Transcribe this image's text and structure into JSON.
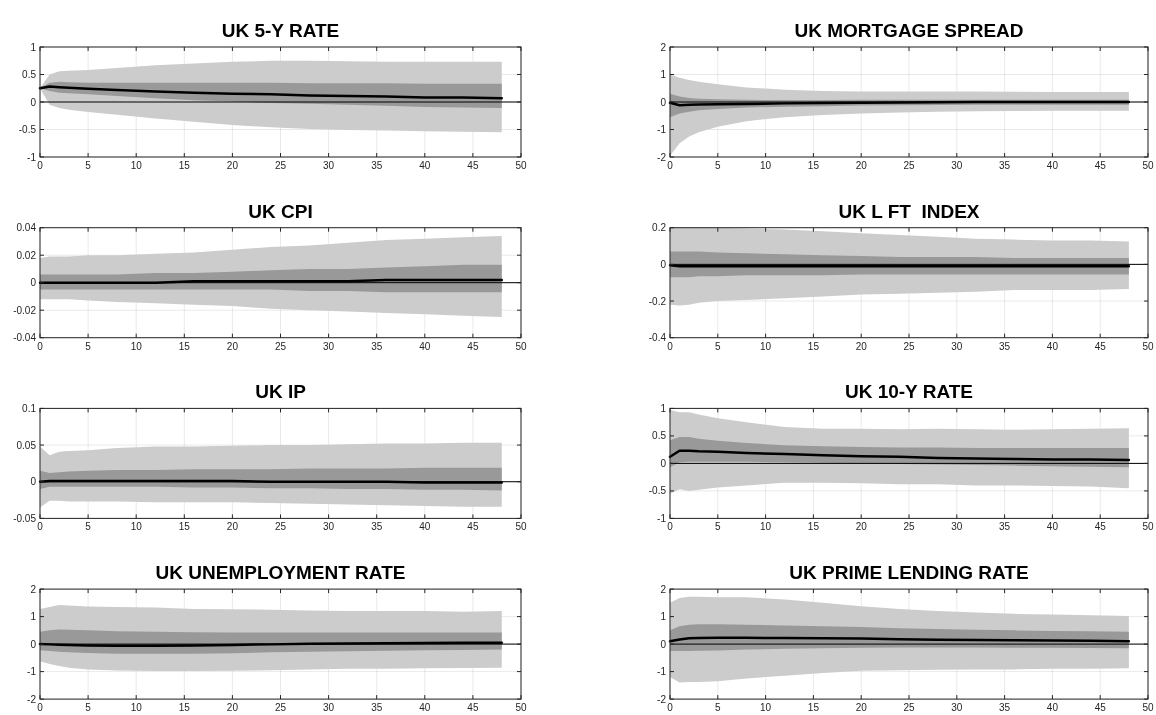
{
  "chart_data": [
    {
      "type": "line",
      "title": "UK 5-Y RATE",
      "x": [
        0,
        1,
        2,
        3,
        5,
        8,
        12,
        16,
        20,
        24,
        28,
        32,
        36,
        40,
        44,
        48
      ],
      "xlim": [
        0,
        50
      ],
      "xticks": [
        0,
        5,
        10,
        15,
        20,
        25,
        30,
        35,
        40,
        45,
        50
      ],
      "ylim": [
        -1,
        1
      ],
      "yticks": [
        -1,
        -0.5,
        0,
        0.5,
        1
      ],
      "grid": true,
      "ref_lines": [
        {
          "axis": "y",
          "value": 0,
          "color": "#000000"
        }
      ],
      "series": [
        {
          "color": "#cccccc",
          "values": [
            null,
            null,
            null,
            null,
            null,
            null,
            null,
            null,
            null,
            null,
            null,
            null,
            null,
            null,
            null,
            null
          ],
          "lower": [
            0.25,
            -0.05,
            -0.11,
            -0.14,
            -0.18,
            -0.23,
            -0.3,
            -0.36,
            -0.42,
            -0.46,
            -0.49,
            -0.51,
            -0.52,
            -0.53,
            -0.54,
            -0.55
          ],
          "upper": [
            0.25,
            0.5,
            0.56,
            0.57,
            0.58,
            0.62,
            0.67,
            0.7,
            0.73,
            0.75,
            0.75,
            0.74,
            0.73,
            0.73,
            0.73,
            0.73
          ]
        },
        {
          "color": "#999999",
          "values": [
            null,
            null,
            null,
            null,
            null,
            null,
            null,
            null,
            null,
            null,
            null,
            null,
            null,
            null,
            null,
            null
          ],
          "lower": [
            0.25,
            0.2,
            0.17,
            0.16,
            0.14,
            0.11,
            0.07,
            0.03,
            0.01,
            -0.02,
            -0.03,
            -0.05,
            -0.07,
            -0.09,
            -0.1,
            -0.11
          ],
          "upper": [
            0.25,
            0.35,
            0.37,
            0.36,
            0.35,
            0.35,
            0.35,
            0.35,
            0.35,
            0.35,
            0.34,
            0.34,
            0.34,
            0.33,
            0.33,
            0.33
          ]
        },
        {
          "color": "#000000",
          "values": [
            0.25,
            0.28,
            0.27,
            0.26,
            0.24,
            0.22,
            0.19,
            0.17,
            0.15,
            0.14,
            0.12,
            0.11,
            0.1,
            0.08,
            0.08,
            0.07
          ]
        }
      ]
    },
    {
      "type": "line",
      "title": "UK MORTGAGE SPREAD",
      "x": [
        0,
        1,
        2,
        3,
        5,
        8,
        12,
        16,
        20,
        24,
        28,
        32,
        36,
        40,
        44,
        48
      ],
      "xlim": [
        0,
        50
      ],
      "xticks": [
        0,
        5,
        10,
        15,
        20,
        25,
        30,
        35,
        40,
        45,
        50
      ],
      "ylim": [
        -2,
        2
      ],
      "yticks": [
        -2,
        -1,
        0,
        1,
        2
      ],
      "grid": true,
      "ref_lines": [
        {
          "axis": "y",
          "value": 0,
          "color": "#000000"
        }
      ],
      "series": [
        {
          "color": "#cccccc",
          "values": [
            null,
            null,
            null,
            null,
            null,
            null,
            null,
            null,
            null,
            null,
            null,
            null,
            null,
            null,
            null,
            null
          ],
          "lower": [
            -1.95,
            -1.5,
            -1.25,
            -1.1,
            -0.9,
            -0.7,
            -0.55,
            -0.47,
            -0.42,
            -0.38,
            -0.35,
            -0.34,
            -0.33,
            -0.32,
            -0.32,
            -0.32
          ],
          "upper": [
            1.0,
            0.88,
            0.8,
            0.74,
            0.65,
            0.53,
            0.45,
            0.4,
            0.38,
            0.38,
            0.38,
            0.38,
            0.37,
            0.36,
            0.36,
            0.36
          ]
        },
        {
          "color": "#999999",
          "values": [
            null,
            null,
            null,
            null,
            null,
            null,
            null,
            null,
            null,
            null,
            null,
            null,
            null,
            null,
            null,
            null
          ],
          "lower": [
            -0.55,
            -0.42,
            -0.35,
            -0.3,
            -0.25,
            -0.2,
            -0.17,
            -0.15,
            -0.13,
            -0.12,
            -0.11,
            -0.1,
            -0.1,
            -0.1,
            -0.1,
            -0.1
          ],
          "upper": [
            0.3,
            0.2,
            0.15,
            0.12,
            0.1,
            0.08,
            0.07,
            0.07,
            0.08,
            0.08,
            0.08,
            0.08,
            0.08,
            0.08,
            0.08,
            0.08
          ]
        },
        {
          "color": "#000000",
          "values": [
            -0.03,
            -0.12,
            -0.1,
            -0.09,
            -0.08,
            -0.07,
            -0.05,
            -0.04,
            -0.03,
            -0.02,
            -0.01,
            0,
            0,
            0,
            0,
            0
          ]
        }
      ]
    },
    {
      "type": "line",
      "title": "UK CPI",
      "x": [
        0,
        1,
        2,
        3,
        5,
        8,
        12,
        16,
        20,
        24,
        28,
        32,
        36,
        40,
        44,
        48
      ],
      "xlim": [
        0,
        50
      ],
      "xticks": [
        0,
        5,
        10,
        15,
        20,
        25,
        30,
        35,
        40,
        45,
        50
      ],
      "ylim": [
        -0.04,
        0.04
      ],
      "yticks": [
        -0.04,
        -0.02,
        0,
        0.02,
        0.04
      ],
      "grid": true,
      "ref_lines": [
        {
          "axis": "y",
          "value": 0,
          "color": "#000000"
        }
      ],
      "series": [
        {
          "color": "#cccccc",
          "values": [
            null,
            null,
            null,
            null,
            null,
            null,
            null,
            null,
            null,
            null,
            null,
            null,
            null,
            null,
            null,
            null
          ],
          "lower": [
            -0.012,
            -0.012,
            -0.012,
            -0.012,
            -0.013,
            -0.014,
            -0.015,
            -0.016,
            -0.017,
            -0.019,
            -0.02,
            -0.021,
            -0.022,
            -0.023,
            -0.024,
            -0.025
          ],
          "upper": [
            0.018,
            0.019,
            0.019,
            0.019,
            0.02,
            0.02,
            0.021,
            0.022,
            0.024,
            0.026,
            0.027,
            0.029,
            0.031,
            0.032,
            0.033,
            0.034
          ]
        },
        {
          "color": "#999999",
          "values": [
            null,
            null,
            null,
            null,
            null,
            null,
            null,
            null,
            null,
            null,
            null,
            null,
            null,
            null,
            null,
            null
          ],
          "lower": [
            -0.005,
            -0.005,
            -0.005,
            -0.005,
            -0.005,
            -0.005,
            -0.005,
            -0.005,
            -0.005,
            -0.005,
            -0.006,
            -0.006,
            -0.007,
            -0.007,
            -0.007,
            -0.007
          ],
          "upper": [
            0.006,
            0.006,
            0.006,
            0.006,
            0.006,
            0.006,
            0.007,
            0.007,
            0.008,
            0.009,
            0.01,
            0.01,
            0.011,
            0.012,
            0.013,
            0.013
          ]
        },
        {
          "color": "#000000",
          "values": [
            0,
            0,
            0,
            0,
            0,
            0,
            0,
            0.001,
            0.001,
            0.001,
            0.001,
            0.001,
            0.002,
            0.002,
            0.002,
            0.002
          ]
        }
      ]
    },
    {
      "type": "line",
      "title": "UK L FT  INDEX",
      "x": [
        0,
        1,
        2,
        3,
        5,
        8,
        12,
        16,
        20,
        24,
        28,
        32,
        36,
        40,
        44,
        48
      ],
      "xlim": [
        0,
        50
      ],
      "xticks": [
        0,
        5,
        10,
        15,
        20,
        25,
        30,
        35,
        40,
        45,
        50
      ],
      "ylim": [
        -0.4,
        0.2
      ],
      "yticks": [
        -0.4,
        -0.2,
        0,
        0.2
      ],
      "grid": true,
      "ref_lines": [
        {
          "axis": "y",
          "value": 0,
          "color": "#000000"
        }
      ],
      "series": [
        {
          "color": "#cccccc",
          "values": [
            null,
            null,
            null,
            null,
            null,
            null,
            null,
            null,
            null,
            null,
            null,
            null,
            null,
            null,
            null,
            null
          ],
          "lower": [
            -0.22,
            -0.225,
            -0.22,
            -0.21,
            -0.2,
            -0.195,
            -0.185,
            -0.175,
            -0.165,
            -0.16,
            -0.155,
            -0.15,
            -0.14,
            -0.14,
            -0.14,
            -0.135
          ],
          "upper": [
            0.2,
            0.2,
            0.2,
            0.2,
            0.2,
            0.195,
            0.19,
            0.18,
            0.17,
            0.16,
            0.15,
            0.14,
            0.135,
            0.13,
            0.13,
            0.125
          ]
        },
        {
          "color": "#999999",
          "values": [
            null,
            null,
            null,
            null,
            null,
            null,
            null,
            null,
            null,
            null,
            null,
            null,
            null,
            null,
            null,
            null
          ],
          "lower": [
            -0.07,
            -0.07,
            -0.07,
            -0.065,
            -0.065,
            -0.06,
            -0.06,
            -0.06,
            -0.055,
            -0.055,
            -0.055,
            -0.055,
            -0.055,
            -0.055,
            -0.055,
            -0.055
          ],
          "upper": [
            0.07,
            0.07,
            0.07,
            0.07,
            0.065,
            0.06,
            0.055,
            0.05,
            0.045,
            0.04,
            0.04,
            0.04,
            0.035,
            0.035,
            0.035,
            0.035
          ]
        },
        {
          "color": "#000000",
          "values": [
            -0.005,
            -0.01,
            -0.01,
            -0.01,
            -0.01,
            -0.01,
            -0.01,
            -0.01,
            -0.01,
            -0.01,
            -0.01,
            -0.01,
            -0.01,
            -0.01,
            -0.01,
            -0.01
          ]
        }
      ]
    },
    {
      "type": "line",
      "title": "UK IP",
      "x": [
        0,
        1,
        2,
        3,
        5,
        8,
        12,
        16,
        20,
        24,
        28,
        32,
        36,
        40,
        44,
        48
      ],
      "xlim": [
        0,
        50
      ],
      "xticks": [
        0,
        5,
        10,
        15,
        20,
        25,
        30,
        35,
        40,
        45,
        50
      ],
      "ylim": [
        -0.05,
        0.1
      ],
      "yticks": [
        -0.05,
        0,
        0.05,
        0.1
      ],
      "grid": true,
      "ref_lines": [
        {
          "axis": "y",
          "value": 0,
          "color": "#000000"
        }
      ],
      "series": [
        {
          "color": "#cccccc",
          "values": [
            null,
            null,
            null,
            null,
            null,
            null,
            null,
            null,
            null,
            null,
            null,
            null,
            null,
            null,
            null,
            null
          ],
          "lower": [
            -0.035,
            -0.026,
            -0.026,
            -0.027,
            -0.027,
            -0.027,
            -0.028,
            -0.028,
            -0.028,
            -0.029,
            -0.03,
            -0.031,
            -0.032,
            -0.033,
            -0.034,
            -0.034
          ],
          "upper": [
            0.048,
            0.036,
            0.041,
            0.042,
            0.043,
            0.046,
            0.048,
            0.048,
            0.049,
            0.05,
            0.05,
            0.051,
            0.052,
            0.052,
            0.053,
            0.053
          ]
        },
        {
          "color": "#999999",
          "values": [
            null,
            null,
            null,
            null,
            null,
            null,
            null,
            null,
            null,
            null,
            null,
            null,
            null,
            null,
            null,
            null
          ],
          "lower": [
            -0.01,
            -0.007,
            -0.007,
            -0.007,
            -0.007,
            -0.007,
            -0.007,
            -0.008,
            -0.008,
            -0.009,
            -0.009,
            -0.01,
            -0.01,
            -0.011,
            -0.011,
            -0.012
          ],
          "upper": [
            0.015,
            0.012,
            0.013,
            0.014,
            0.015,
            0.016,
            0.016,
            0.017,
            0.017,
            0.017,
            0.018,
            0.018,
            0.018,
            0.019,
            0.019,
            0.019
          ]
        },
        {
          "color": "#000000",
          "values": [
            0,
            0.001,
            0.001,
            0.001,
            0.001,
            0.001,
            0.001,
            0.001,
            0.001,
            0,
            0,
            0,
            0,
            -0.001,
            -0.001,
            -0.001
          ]
        }
      ]
    },
    {
      "type": "line",
      "title": "UK 10-Y RATE",
      "x": [
        0,
        1,
        2,
        3,
        5,
        8,
        12,
        16,
        20,
        24,
        28,
        32,
        36,
        40,
        44,
        48
      ],
      "xlim": [
        0,
        50
      ],
      "xticks": [
        0,
        5,
        10,
        15,
        20,
        25,
        30,
        35,
        40,
        45,
        50
      ],
      "ylim": [
        -1,
        1
      ],
      "yticks": [
        -1,
        -0.5,
        0,
        0.5,
        1
      ],
      "grid": true,
      "ref_lines": [
        {
          "axis": "y",
          "value": 0,
          "color": "#000000"
        }
      ],
      "series": [
        {
          "color": "#cccccc",
          "values": [
            null,
            null,
            null,
            null,
            null,
            null,
            null,
            null,
            null,
            null,
            null,
            null,
            null,
            null,
            null,
            null
          ],
          "lower": [
            -0.55,
            -0.47,
            -0.5,
            -0.48,
            -0.44,
            -0.4,
            -0.35,
            -0.35,
            -0.36,
            -0.38,
            -0.38,
            -0.4,
            -0.4,
            -0.41,
            -0.42,
            -0.45
          ],
          "upper": [
            0.97,
            0.93,
            0.93,
            0.89,
            0.82,
            0.75,
            0.66,
            0.63,
            0.63,
            0.62,
            0.63,
            0.62,
            0.61,
            0.62,
            0.63,
            0.64
          ]
        },
        {
          "color": "#999999",
          "values": [
            null,
            null,
            null,
            null,
            null,
            null,
            null,
            null,
            null,
            null,
            null,
            null,
            null,
            null,
            null,
            null
          ],
          "lower": [
            -0.07,
            0.02,
            0.03,
            0.03,
            0.03,
            0.03,
            0.02,
            0.01,
            0,
            -0.01,
            -0.02,
            -0.03,
            -0.04,
            -0.05,
            -0.06,
            -0.07
          ],
          "upper": [
            0.42,
            0.48,
            0.48,
            0.45,
            0.41,
            0.37,
            0.33,
            0.31,
            0.3,
            0.29,
            0.29,
            0.28,
            0.28,
            0.28,
            0.28,
            0.28
          ]
        },
        {
          "color": "#000000",
          "values": [
            0.12,
            0.23,
            0.23,
            0.22,
            0.21,
            0.19,
            0.17,
            0.15,
            0.13,
            0.12,
            0.1,
            0.09,
            0.08,
            0.07,
            0.07,
            0.06
          ]
        }
      ]
    },
    {
      "type": "line",
      "title": "UK UNEMPLOYMENT RATE",
      "x": [
        0,
        1,
        2,
        3,
        5,
        8,
        12,
        16,
        20,
        24,
        28,
        32,
        36,
        40,
        44,
        48
      ],
      "xlim": [
        0,
        50
      ],
      "xticks": [
        0,
        5,
        10,
        15,
        20,
        25,
        30,
        35,
        40,
        45,
        50
      ],
      "ylim": [
        -2,
        2
      ],
      "yticks": [
        -2,
        -1,
        0,
        1,
        2
      ],
      "grid": true,
      "ref_lines": [
        {
          "axis": "y",
          "value": 0,
          "color": "#000000"
        }
      ],
      "series": [
        {
          "color": "#cccccc",
          "values": [
            null,
            null,
            null,
            null,
            null,
            null,
            null,
            null,
            null,
            null,
            null,
            null,
            null,
            null,
            null,
            null
          ],
          "lower": [
            -0.62,
            -0.72,
            -0.8,
            -0.86,
            -0.92,
            -0.96,
            -0.98,
            -0.98,
            -0.97,
            -0.95,
            -0.92,
            -0.9,
            -0.9,
            -0.88,
            -0.87,
            -0.86
          ],
          "upper": [
            1.28,
            1.35,
            1.42,
            1.4,
            1.37,
            1.35,
            1.33,
            1.28,
            1.27,
            1.25,
            1.22,
            1.2,
            1.2,
            1.2,
            1.18,
            1.2
          ]
        },
        {
          "color": "#999999",
          "values": [
            null,
            null,
            null,
            null,
            null,
            null,
            null,
            null,
            null,
            null,
            null,
            null,
            null,
            null,
            null,
            null
          ],
          "lower": [
            -0.22,
            -0.25,
            -0.28,
            -0.3,
            -0.32,
            -0.35,
            -0.35,
            -0.35,
            -0.33,
            -0.3,
            -0.28,
            -0.26,
            -0.24,
            -0.22,
            -0.21,
            -0.2
          ],
          "upper": [
            0.45,
            0.5,
            0.53,
            0.52,
            0.5,
            0.47,
            0.45,
            0.43,
            0.42,
            0.42,
            0.42,
            0.42,
            0.42,
            0.42,
            0.42,
            0.42
          ]
        },
        {
          "color": "#000000",
          "values": [
            0,
            -0.01,
            -0.02,
            -0.03,
            -0.05,
            -0.06,
            -0.06,
            -0.05,
            -0.03,
            -0.01,
            0.01,
            0.02,
            0.03,
            0.04,
            0.05,
            0.05
          ]
        }
      ]
    },
    {
      "type": "line",
      "title": "UK PRIME LENDING RATE",
      "x": [
        0,
        1,
        2,
        3,
        5,
        8,
        12,
        16,
        20,
        24,
        28,
        32,
        36,
        40,
        44,
        48
      ],
      "xlim": [
        0,
        50
      ],
      "xticks": [
        0,
        5,
        10,
        15,
        20,
        25,
        30,
        35,
        40,
        45,
        50
      ],
      "ylim": [
        -2,
        2
      ],
      "yticks": [
        -2,
        -1,
        0,
        1,
        2
      ],
      "grid": true,
      "ref_lines": [
        {
          "axis": "y",
          "value": 0,
          "color": "#000000"
        }
      ],
      "series": [
        {
          "color": "#cccccc",
          "values": [
            null,
            null,
            null,
            null,
            null,
            null,
            null,
            null,
            null,
            null,
            null,
            null,
            null,
            null,
            null,
            null
          ],
          "lower": [
            -1.2,
            -1.4,
            -1.38,
            -1.38,
            -1.35,
            -1.25,
            -1.15,
            -1.05,
            -0.97,
            -0.95,
            -0.93,
            -0.92,
            -0.92,
            -0.9,
            -0.9,
            -0.88
          ],
          "upper": [
            1.5,
            1.68,
            1.72,
            1.72,
            1.7,
            1.7,
            1.62,
            1.5,
            1.38,
            1.28,
            1.2,
            1.15,
            1.1,
            1.08,
            1.05,
            1.02
          ]
        },
        {
          "color": "#999999",
          "values": [
            null,
            null,
            null,
            null,
            null,
            null,
            null,
            null,
            null,
            null,
            null,
            null,
            null,
            null,
            null,
            null
          ],
          "lower": [
            -0.25,
            -0.25,
            -0.25,
            -0.24,
            -0.23,
            -0.2,
            -0.17,
            -0.15,
            -0.13,
            -0.12,
            -0.12,
            -0.12,
            -0.13,
            -0.13,
            -0.14,
            -0.15
          ],
          "upper": [
            0.5,
            0.65,
            0.7,
            0.72,
            0.72,
            0.7,
            0.68,
            0.65,
            0.62,
            0.58,
            0.55,
            0.52,
            0.5,
            0.48,
            0.47,
            0.45
          ]
        },
        {
          "color": "#000000",
          "values": [
            0.1,
            0.17,
            0.21,
            0.22,
            0.23,
            0.23,
            0.22,
            0.21,
            0.2,
            0.18,
            0.16,
            0.15,
            0.14,
            0.13,
            0.12,
            0.1
          ]
        }
      ]
    }
  ]
}
